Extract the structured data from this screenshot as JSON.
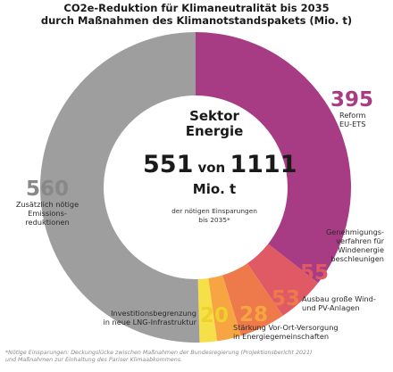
{
  "title": {
    "line1": "CO2e-Reduktion für Klimaneutralität bis 2035",
    "line2": "durch Maßnahmen des Klimanotstandspakets (Mio. t)"
  },
  "center": {
    "sector": "Sektor\nEnergie",
    "value": "551",
    "of": "von",
    "total": "1111",
    "unit": "Mio. t",
    "note": "der nötigen Einsparungen\nbis 2035*"
  },
  "footnote": "*Nötige Einsparungen: Deckungslücke zwischen Maßnahmen der Bundesregierung (Projektionsbericht 2021)\nund Maßnahmen zur Einhaltung des Pariser Klimaabkommens.",
  "chart_data": {
    "type": "pie",
    "donut": true,
    "total": 1111,
    "segments": [
      {
        "label": "Reform EU-ETS",
        "value": 395,
        "color": "#a83c84"
      },
      {
        "label": "Genehmigungsverfahren für Windenergie beschleunigen",
        "value": 55,
        "color": "#e05a66"
      },
      {
        "label": "Ausbau große Wind- und PV-Anlagen",
        "value": 53,
        "color": "#ee7a4c"
      },
      {
        "label": "Stärkung Vor-Ort-Versorgung in Energiegemeinschaften",
        "value": 28,
        "color": "#f7a542"
      },
      {
        "label": "Investitionsbegrenzung in neue LNG-Infrastruktur",
        "value": 20,
        "color": "#f6e04a"
      },
      {
        "label": "Zusätzlich nötige Emissionsreduktionen",
        "value": 560,
        "color": "#9e9e9e"
      }
    ],
    "labels": {
      "eu_ets": {
        "value": "395",
        "text": "Reform\nEU-ETS",
        "color": "#a83c84"
      },
      "wind_permits": {
        "value": "55",
        "text": "Genehmigungs-\nverfahren für\nWindenergie\nbeschleunigen",
        "color": "#e05a66"
      },
      "wind_pv": {
        "value": "53",
        "text": "Ausbau große Wind-\nund PV-Anlagen",
        "color": "#ee7a4c"
      },
      "local_supply": {
        "value": "28",
        "text": "Stärkung Vor-Ort-Versorgung\nin Energiegemeinschaften",
        "color": "#f7a542"
      },
      "lng": {
        "value": "20",
        "text": "Investitionsbegrenzung\nin neue LNG-Infrastruktur",
        "color": "#f0d02a"
      },
      "additional": {
        "value": "560",
        "text": "Zusätzlich nötige\nEmissions-\nreduktionen",
        "color": "#888888"
      }
    }
  }
}
